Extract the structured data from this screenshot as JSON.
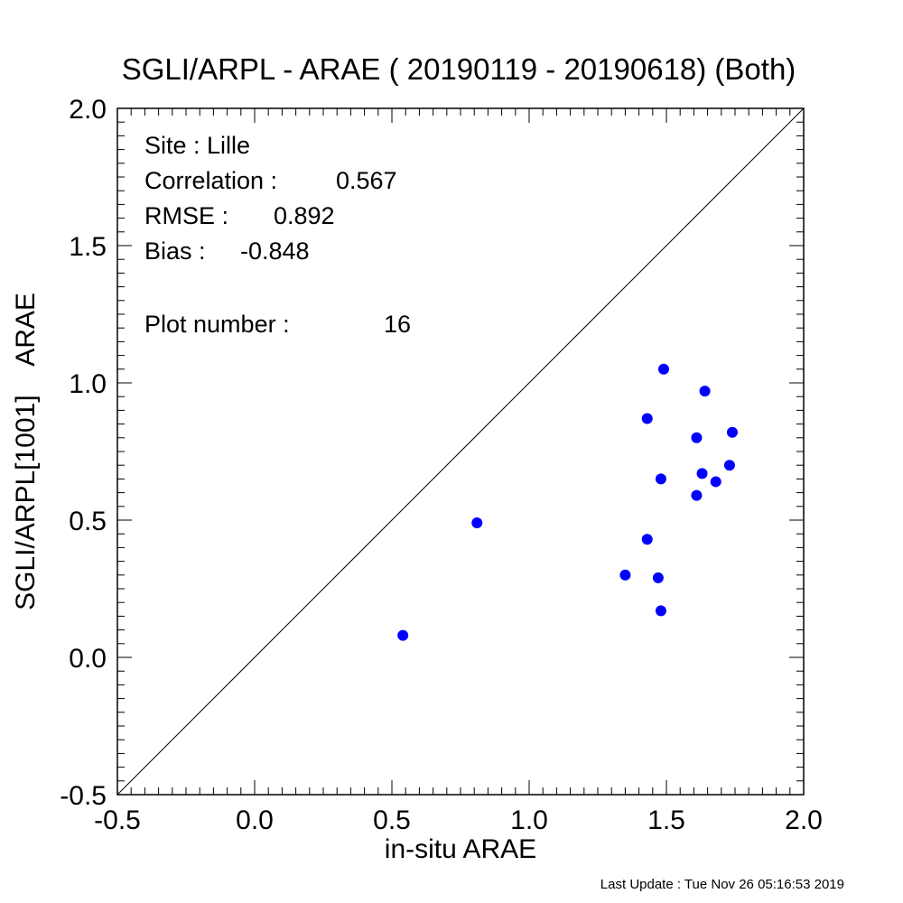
{
  "chart_data": {
    "type": "scatter",
    "title": "SGLI/ARPL - ARAE ( 20190119 - 20190618) (Both)",
    "xlabel": "in-situ ARAE",
    "ylabel": "SGLI/ARPL[1001]    ARAE",
    "xlim": [
      -0.5,
      2.0
    ],
    "ylim": [
      -0.5,
      2.0
    ],
    "x_ticks": [
      "-0.5",
      "0.0",
      "0.5",
      "1.0",
      "1.5",
      "2.0"
    ],
    "y_ticks": [
      "-0.5",
      "0.0",
      "0.5",
      "1.0",
      "1.5",
      "2.0"
    ],
    "identity_line": true,
    "grid": false,
    "marker_color": "#0000ff",
    "annotations": {
      "site": "Site : Lille",
      "correlation_label": "Correlation :",
      "correlation_value": "0.567",
      "rmse_label": "RMSE :",
      "rmse_value": "0.892",
      "bias_label": "Bias :",
      "bias_value": "-0.848",
      "plot_number_label": "Plot number :",
      "plot_number_value": "16"
    },
    "points": [
      {
        "x": 0.54,
        "y": 0.08
      },
      {
        "x": 0.81,
        "y": 0.49
      },
      {
        "x": 1.35,
        "y": 0.3
      },
      {
        "x": 1.43,
        "y": 0.43
      },
      {
        "x": 1.43,
        "y": 0.87
      },
      {
        "x": 1.47,
        "y": 0.29
      },
      {
        "x": 1.48,
        "y": 0.17
      },
      {
        "x": 1.48,
        "y": 0.65
      },
      {
        "x": 1.49,
        "y": 1.05
      },
      {
        "x": 1.61,
        "y": 0.8
      },
      {
        "x": 1.61,
        "y": 0.59
      },
      {
        "x": 1.63,
        "y": 0.67
      },
      {
        "x": 1.64,
        "y": 0.97
      },
      {
        "x": 1.68,
        "y": 0.64
      },
      {
        "x": 1.73,
        "y": 0.7
      },
      {
        "x": 1.74,
        "y": 0.82
      }
    ]
  },
  "footer": "Last Update : Tue Nov 26 05:16:53 2019"
}
